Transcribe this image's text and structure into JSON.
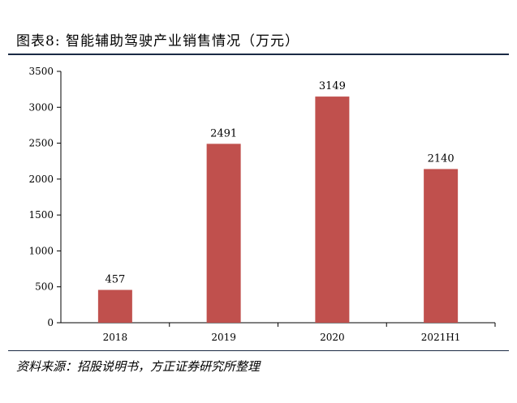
{
  "figure": {
    "title": "图表8:   智能辅助驾驶产业销售情况（万元）",
    "source": "资料来源：招股说明书，方正证券研究所整理"
  },
  "chart_data": {
    "type": "bar",
    "title": "智能辅助驾驶产业销售情况（万元）",
    "xlabel": "",
    "ylabel": "",
    "categories": [
      "2018",
      "2019",
      "2020",
      "2021H1"
    ],
    "values": [
      457,
      2491,
      3149,
      2140
    ],
    "data_labels": [
      "457",
      "2491",
      "3149",
      "2140"
    ],
    "ylim": [
      0,
      3500
    ],
    "yticks": [
      0,
      500,
      1000,
      1500,
      2000,
      2500,
      3000,
      3500
    ],
    "ytick_labels": [
      "0",
      "500",
      "1000",
      "1500",
      "2000",
      "2500",
      "3000",
      "3500"
    ],
    "grid": false,
    "legend": "none",
    "bar_color": "#c0504d"
  }
}
